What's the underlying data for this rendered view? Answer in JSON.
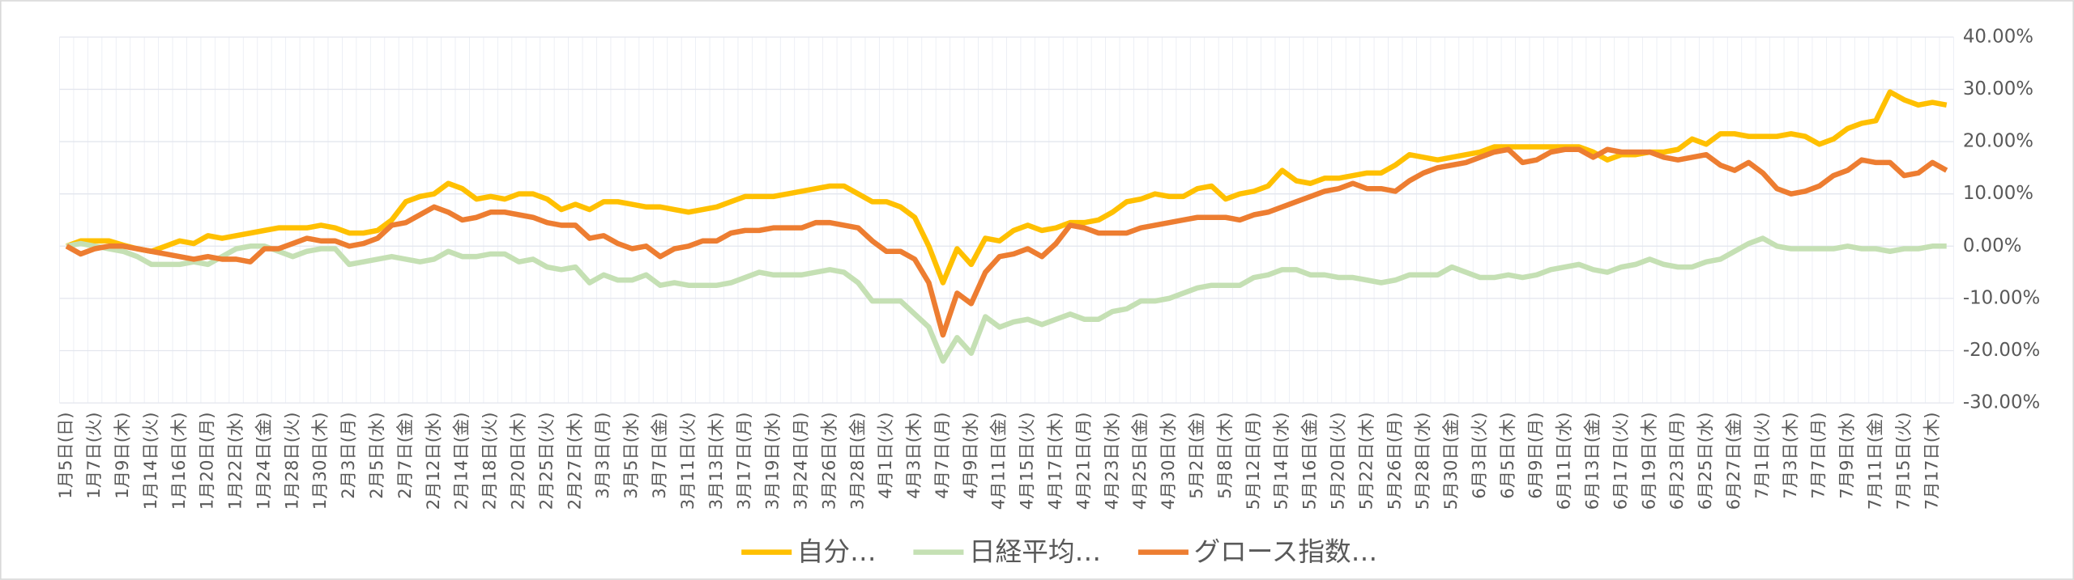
{
  "chart_data": {
    "type": "line",
    "categories": [
      "1月5日(日)",
      null,
      "1月7日(火)",
      null,
      "1月9日(木)",
      null,
      "1月14日(火)",
      null,
      "1月16日(木)",
      null,
      "1月20日(月)",
      null,
      "1月22日(水)",
      null,
      "1月24日(金)",
      null,
      "1月28日(火)",
      null,
      "1月30日(木)",
      null,
      "2月3日(月)",
      null,
      "2月5日(水)",
      null,
      "2月7日(金)",
      null,
      "2月12日(水)",
      null,
      "2月14日(金)",
      null,
      "2月18日(火)",
      null,
      "2月20日(木)",
      null,
      "2月25日(火)",
      null,
      "2月27日(木)",
      null,
      "3月3日(月)",
      null,
      "3月5日(水)",
      null,
      "3月7日(金)",
      null,
      "3月11日(火)",
      null,
      "3月13日(木)",
      null,
      "3月17日(月)",
      null,
      "3月19日(水)",
      null,
      "3月24日(月)",
      null,
      "3月26日(水)",
      null,
      "3月28日(金)",
      null,
      "4月1日(火)",
      null,
      "4月3日(木)",
      null,
      "4月7日(月)",
      null,
      "4月9日(水)",
      null,
      "4月11日(金)",
      null,
      "4月15日(火)",
      null,
      "4月17日(木)",
      null,
      "4月21日(月)",
      null,
      "4月23日(水)",
      null,
      "4月25日(金)",
      null,
      "4月30日(水)",
      null,
      "5月2日(金)",
      null,
      "5月8日(木)",
      null,
      "5月12日(月)",
      null,
      "5月14日(水)",
      null,
      "5月16日(金)",
      null,
      "5月20日(火)",
      null,
      "5月22日(木)",
      null,
      "5月26日(月)",
      null,
      "5月28日(水)",
      null,
      "5月30日(金)",
      null,
      "6月3日(火)",
      null,
      "6月5日(木)",
      null,
      "6月9日(月)",
      null,
      "6月11日(水)",
      null,
      "6月13日(金)",
      null,
      "6月17日(火)",
      null,
      "6月19日(木)",
      null,
      "6月23日(月)",
      null,
      "6月25日(水)",
      null,
      "6月27日(金)",
      null,
      "7月1日(火)",
      null,
      "7月3日(木)",
      null,
      "7月7日(月)",
      null,
      "7月9日(水)",
      null,
      "7月11日(金)",
      null,
      "7月15日(火)",
      null,
      "7月17日(木)",
      null
    ],
    "series": [
      {
        "name": "自分…",
        "color": "#FFC000",
        "values": [
          0,
          1,
          1,
          1,
          0.2,
          -0.5,
          -1,
          0,
          1,
          0.5,
          2,
          1.5,
          2,
          2.5,
          3,
          3.5,
          3.5,
          3.5,
          4,
          3.5,
          2.5,
          2.5,
          3,
          5,
          8.5,
          9.5,
          10,
          12,
          11,
          9,
          9.5,
          9,
          10,
          10,
          9,
          7,
          8,
          7,
          8.5,
          8.5,
          8,
          7.5,
          7.5,
          7,
          6.5,
          7,
          7.5,
          8.5,
          9.5,
          9.5,
          9.5,
          10,
          10.5,
          11,
          11.5,
          11.5,
          10,
          8.5,
          8.5,
          7.5,
          5.5,
          0,
          -7,
          -0.5,
          -3.5,
          1.5,
          1,
          3,
          4,
          3,
          3.5,
          4.5,
          4.5,
          5,
          6.5,
          8.5,
          9,
          10,
          9.5,
          9.5,
          11,
          11.5,
          9,
          10,
          10.5,
          11.5,
          14.5,
          12.5,
          12,
          13,
          13,
          13.5,
          14,
          14,
          15.5,
          17.5,
          17,
          16.5,
          17,
          17.5,
          18,
          19,
          19,
          19,
          19,
          19,
          19,
          19,
          18,
          16.5,
          17.5,
          17.5,
          18,
          18,
          18.5,
          20.5,
          19.5,
          21.5,
          21.5,
          21,
          21,
          21,
          21.5,
          21,
          19.5,
          20.5,
          22.5,
          23.5,
          24,
          29.5,
          28,
          27,
          27.5,
          27
        ]
      },
      {
        "name": "日経平均…",
        "color": "#C5E0B4",
        "values": [
          0,
          0.5,
          0,
          -0.5,
          -1,
          -2,
          -3.5,
          -3.5,
          -3.5,
          -3,
          -3.5,
          -2,
          -0.5,
          0,
          0,
          -1,
          -2,
          -1,
          -0.5,
          -0.5,
          -3.5,
          -3,
          -2.5,
          -2,
          -2.5,
          -3,
          -2.5,
          -1,
          -2,
          -2,
          -1.5,
          -1.5,
          -3,
          -2.5,
          -4,
          -4.5,
          -4,
          -7,
          -5.5,
          -6.5,
          -6.5,
          -5.5,
          -7.5,
          -7,
          -7.5,
          -7.5,
          -7.5,
          -7,
          -6,
          -5,
          -5.5,
          -5.5,
          -5.5,
          -5,
          -4.5,
          -5,
          -7,
          -10.5,
          -10.5,
          -10.5,
          -13,
          -15.5,
          -22,
          -17.5,
          -20.5,
          -13.5,
          -15.5,
          -14.5,
          -14,
          -15,
          -14,
          -13,
          -14,
          -14,
          -12.5,
          -12,
          -10.5,
          -10.5,
          -10,
          -9,
          -8,
          -7.5,
          -7.5,
          -7.5,
          -6,
          -5.5,
          -4.5,
          -4.5,
          -5.5,
          -5.5,
          -6,
          -6,
          -6.5,
          -7,
          -6.5,
          -5.5,
          -5.5,
          -5.5,
          -4,
          -5,
          -6,
          -6,
          -5.5,
          -6,
          -5.5,
          -4.5,
          -4,
          -3.5,
          -4.5,
          -5,
          -4,
          -3.5,
          -2.5,
          -3.5,
          -4,
          -4,
          -3,
          -2.5,
          -1,
          0.5,
          1.5,
          0,
          -0.5,
          -0.5,
          -0.5,
          -0.5,
          0,
          -0.5,
          -0.5,
          -1,
          -0.5,
          -0.5,
          0,
          0
        ]
      },
      {
        "name": "グロース指数…",
        "color": "#ED7D31",
        "values": [
          0,
          -1.5,
          -0.5,
          0,
          0,
          -0.5,
          -1,
          -1.5,
          -2,
          -2.5,
          -2,
          -2.5,
          -2.5,
          -3,
          -0.5,
          -0.5,
          0.5,
          1.5,
          1,
          1,
          0,
          0.5,
          1.5,
          4,
          4.5,
          6,
          7.5,
          6.5,
          5,
          5.5,
          6.5,
          6.5,
          6,
          5.5,
          4.5,
          4,
          4,
          1.5,
          2,
          0.5,
          -0.5,
          0,
          -2,
          -0.5,
          0,
          1,
          1,
          2.5,
          3,
          3,
          3.5,
          3.5,
          3.5,
          4.5,
          4.5,
          4,
          3.5,
          1,
          -1,
          -1,
          -2.5,
          -7,
          -17,
          -9,
          -11,
          -5,
          -2,
          -1.5,
          -0.5,
          -2,
          0.5,
          4,
          3.5,
          2.5,
          2.5,
          2.5,
          3.5,
          4,
          4.5,
          5,
          5.5,
          5.5,
          5.5,
          5,
          6,
          6.5,
          7.5,
          8.5,
          9.5,
          10.5,
          11,
          12,
          11,
          11,
          10.5,
          12.5,
          14,
          15,
          15.5,
          16,
          17,
          18,
          18.5,
          16,
          16.5,
          18,
          18.5,
          18.5,
          17,
          18.5,
          18,
          18,
          18,
          17,
          16.5,
          17,
          17.5,
          15.5,
          14.5,
          16,
          14,
          11,
          10,
          10.5,
          11.5,
          13.5,
          14.5,
          16.5,
          16,
          16,
          13.5,
          14,
          16,
          14.5
        ]
      }
    ],
    "ylim": [
      -30,
      40
    ],
    "yticks": [
      {
        "value": -30,
        "label": "-30.00%"
      },
      {
        "value": -20,
        "label": "-20.00%"
      },
      {
        "value": -10,
        "label": "-10.00%"
      },
      {
        "value": 0,
        "label": "0.00%"
      },
      {
        "value": 10,
        "label": "10.00%"
      },
      {
        "value": 20,
        "label": "20.00%"
      },
      {
        "value": 30,
        "label": "30.00%"
      },
      {
        "value": 40,
        "label": "40.00%"
      }
    ],
    "grid": true,
    "legend": "bottom"
  }
}
